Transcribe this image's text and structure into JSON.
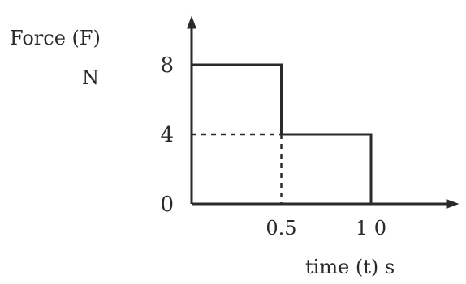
{
  "chart_data": {
    "type": "step",
    "ylabel_line1": "Force (F)",
    "ylabel_unit": "N",
    "xlabel": "time (t) s",
    "x_ticks": [
      {
        "value": 0.5,
        "label": "0.5"
      },
      {
        "value": 1.0,
        "label": "1 0"
      }
    ],
    "y_ticks": [
      {
        "value": 0,
        "label": "0"
      },
      {
        "value": 4,
        "label": "4"
      },
      {
        "value": 8,
        "label": "8"
      }
    ],
    "segments": [
      {
        "x_start": 0,
        "x_end": 0.5,
        "y": 8
      },
      {
        "x_start": 0.5,
        "x_end": 1.0,
        "y": 4
      }
    ],
    "xlim": [
      0,
      1.5
    ],
    "ylim": [
      0,
      11
    ],
    "grid": false,
    "line_color": "#2a2a2a"
  }
}
